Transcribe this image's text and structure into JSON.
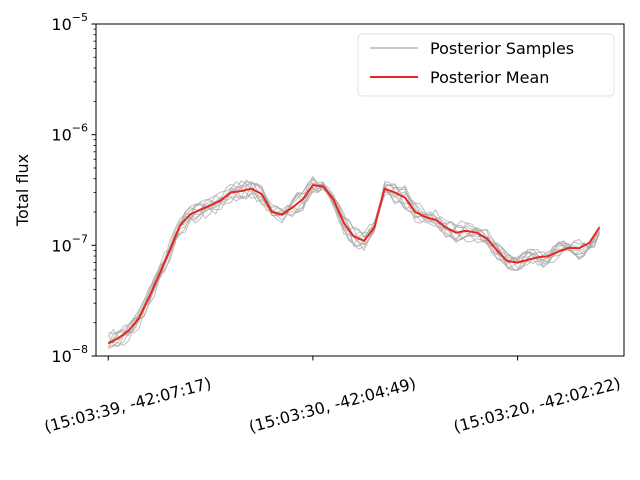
{
  "chart_data": {
    "type": "line",
    "ylabel": "Total flux",
    "y_scale": "log",
    "ylim": [
      1e-08,
      1e-05
    ],
    "y_ticks": [
      {
        "value": 1e-08,
        "base": "10",
        "exp": "−8"
      },
      {
        "value": 1e-07,
        "base": "10",
        "exp": "−7"
      },
      {
        "value": 1e-06,
        "base": "10",
        "exp": "−6"
      },
      {
        "value": 1e-05,
        "base": "10",
        "exp": "−5"
      }
    ],
    "xlim": [
      -0.3,
      12.6
    ],
    "x_ticks": [
      {
        "value": 0,
        "label": "(15:03:39, -42:07:17)"
      },
      {
        "value": 5,
        "label": "(15:03:30, -42:04:49)"
      },
      {
        "value": 10,
        "label": "(15:03:20, -42:02:22)"
      }
    ],
    "legend_position": "top-right",
    "grid": false,
    "series": [
      {
        "name": "Posterior Mean",
        "color": "#e8261c",
        "x": [
          0,
          0.25,
          0.5,
          0.75,
          1,
          1.25,
          1.5,
          1.75,
          2,
          2.25,
          2.5,
          2.75,
          3,
          3.25,
          3.5,
          3.75,
          4,
          4.25,
          4.5,
          4.75,
          5,
          5.25,
          5.5,
          5.75,
          6,
          6.25,
          6.5,
          6.75,
          7,
          7.25,
          7.5,
          7.75,
          8,
          8.25,
          8.5,
          8.75,
          9,
          9.25,
          9.5,
          9.75,
          10,
          10.25,
          10.5,
          10.75,
          11,
          11.25,
          11.5,
          11.75,
          12
        ],
        "y": [
          1.3e-08,
          1.45e-08,
          1.7e-08,
          2.2e-08,
          3.4e-08,
          5.5e-08,
          9e-08,
          1.5e-07,
          1.9e-07,
          2.1e-07,
          2.3e-07,
          2.55e-07,
          3e-07,
          3.1e-07,
          3.25e-07,
          2.9e-07,
          2e-07,
          1.9e-07,
          2.2e-07,
          2.6e-07,
          3.5e-07,
          3.4e-07,
          2.6e-07,
          1.6e-07,
          1.2e-07,
          1.1e-07,
          1.45e-07,
          3.25e-07,
          3e-07,
          2.7e-07,
          2e-07,
          1.8e-07,
          1.7e-07,
          1.45e-07,
          1.3e-07,
          1.35e-07,
          1.3e-07,
          1.15e-07,
          9e-08,
          7.2e-08,
          7e-08,
          7.4e-08,
          7.8e-08,
          8e-08,
          8.8e-08,
          9.5e-08,
          9.4e-08,
          1.05e-07,
          1.45e-07
        ]
      },
      {
        "name": "Posterior Samples",
        "color": "#a8a8a8",
        "count": 10
      }
    ]
  }
}
